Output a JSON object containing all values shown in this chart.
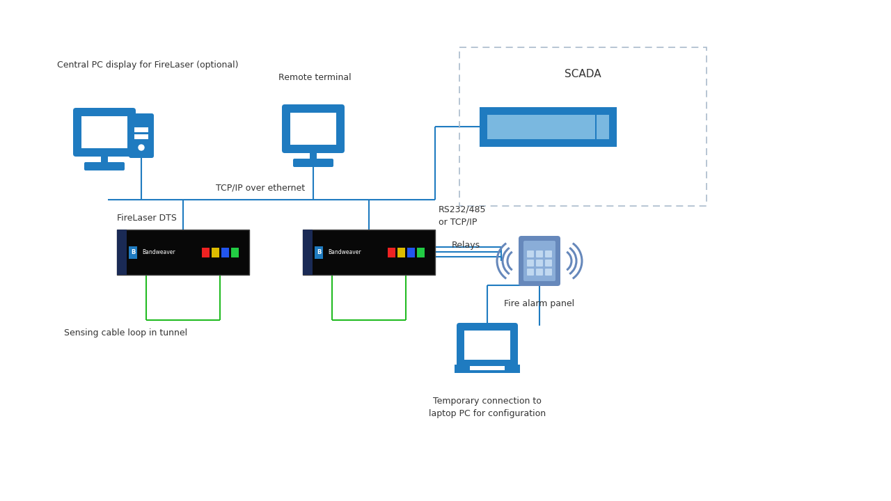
{
  "bg_color": "#ffffff",
  "blue": "#1F7BC0",
  "mid_blue": "#4a9ad4",
  "light_blue": "#7ab8e0",
  "alarm_blue": "#6688bb",
  "alarm_light": "#8aadd8",
  "green": "#22bb22",
  "label_color": "#333333",
  "dashed_color": "#aabbcc",
  "labels": {
    "central_pc": "Central PC display for FireLaser (optional)",
    "remote_terminal": "Remote terminal",
    "scada": "SCADA",
    "firelaser_dts": "FireLaser DTS",
    "tcp_ip": "TCP/IP over ethernet",
    "rs232": "RS232/485\nor TCP/IP",
    "relays": "Relays",
    "fire_alarm": "Fire alarm panel",
    "sensing_cable": "Sensing cable loop in tunnel",
    "temporary": "Temporary connection to\nlaptop PC for configuration"
  }
}
